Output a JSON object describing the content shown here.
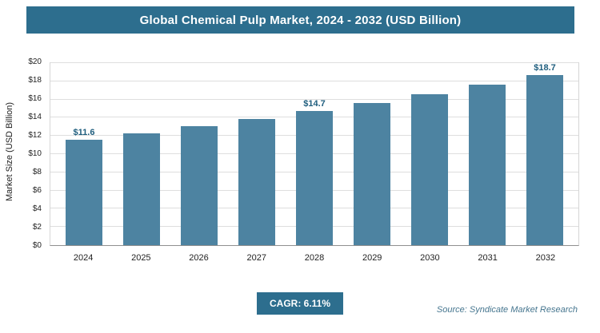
{
  "header": {
    "title": "Global Chemical Pulp Market, 2024 - 2032 (USD Billion)"
  },
  "chart_data": {
    "type": "bar",
    "title": "Global Chemical Pulp Market, 2024 - 2032 (USD Billion)",
    "xlabel": "",
    "ylabel": "Market Size (USD Billion)",
    "ylim": [
      0,
      20
    ],
    "ytick_step": 2,
    "yticks": [
      "$0",
      "$2",
      "$4",
      "$6",
      "$8",
      "$10",
      "$12",
      "$14",
      "$16",
      "$18",
      "$20"
    ],
    "categories": [
      "2024",
      "2025",
      "2026",
      "2027",
      "2028",
      "2029",
      "2030",
      "2031",
      "2032"
    ],
    "values": [
      11.6,
      12.3,
      13.1,
      13.9,
      14.7,
      15.6,
      16.6,
      17.6,
      18.7
    ],
    "data_labels": [
      "$11.6",
      null,
      null,
      null,
      "$14.7",
      null,
      null,
      null,
      "$18.7"
    ],
    "bar_color": "#4d83a1",
    "grid": true,
    "legend": "none"
  },
  "footer": {
    "cagr_label": "CAGR: 6.11%",
    "source": "Source: Syndicate Market Research"
  },
  "colors": {
    "accent": "#2d6e8e",
    "bar": "#4d83a1",
    "data_label": "#1f5e7e",
    "source_text": "#46768f"
  }
}
